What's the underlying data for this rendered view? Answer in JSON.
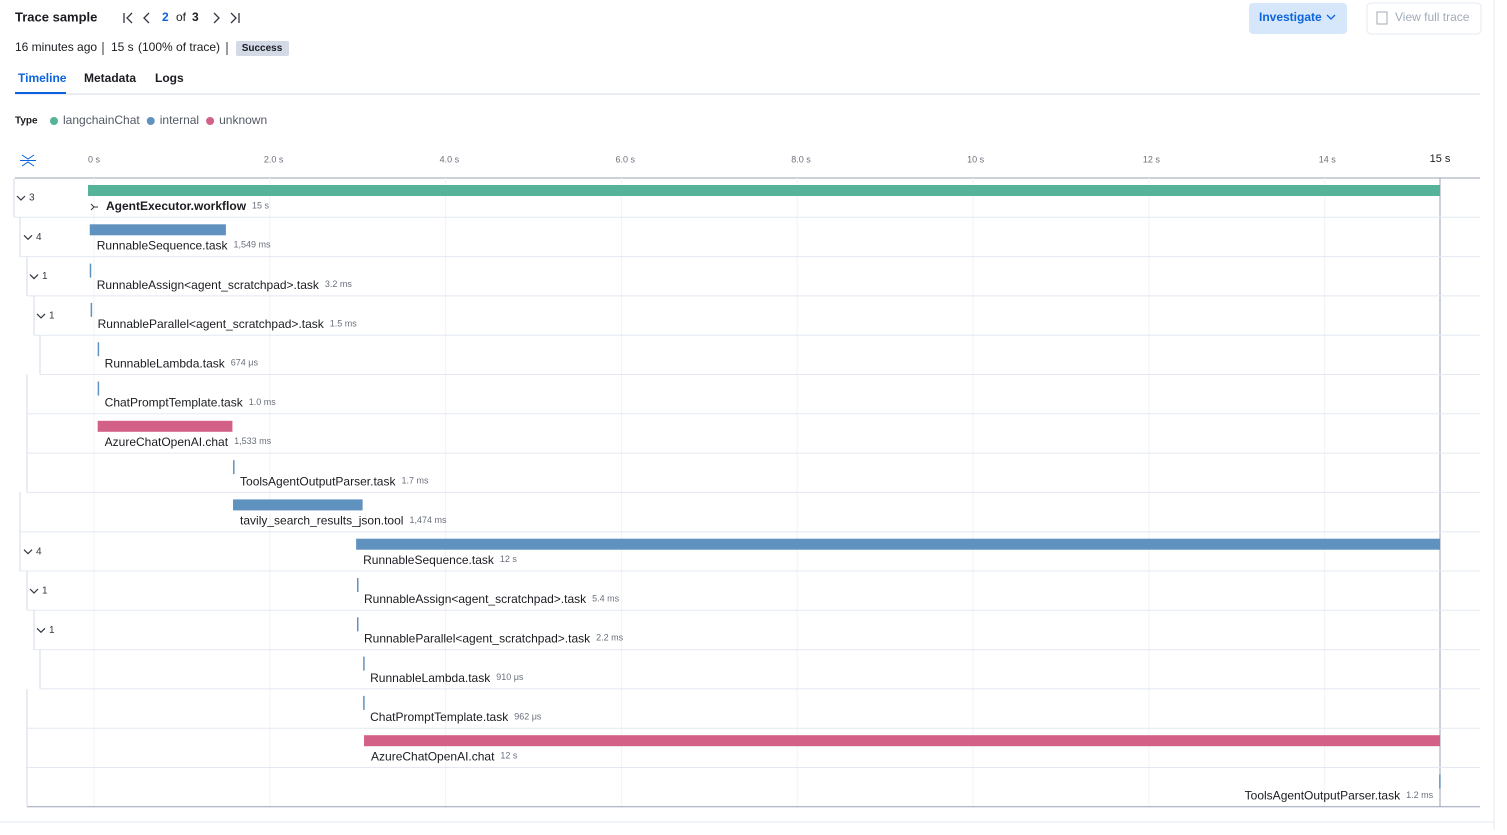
{
  "header": {
    "title": "Trace sample",
    "page": 2,
    "of": "of",
    "total": 3,
    "investigate": "Investigate",
    "view_full_trace": "View full trace"
  },
  "summary": {
    "time_ago": "16 minutes ago",
    "duration": "15 s",
    "percent": "(100% of trace)",
    "status": "Success"
  },
  "tabs": [
    "Timeline",
    "Metadata",
    "Logs"
  ],
  "legend": {
    "title": "Type",
    "items": [
      {
        "name": "langchainChat",
        "color": "#54b399"
      },
      {
        "name": "internal",
        "color": "#6092c0"
      },
      {
        "name": "unknown",
        "color": "#d36086"
      }
    ]
  },
  "timeline": {
    "xlim": [
      0,
      15.38
    ],
    "xticks": [
      {
        "value": 0,
        "label": "0 s"
      },
      {
        "value": 2,
        "label": "2.0 s"
      },
      {
        "value": 4,
        "label": "4.0 s"
      },
      {
        "value": 6,
        "label": "6.0 s"
      },
      {
        "value": 8,
        "label": "8.0 s"
      },
      {
        "value": 10,
        "label": "10 s"
      },
      {
        "value": 12,
        "label": "12 s"
      },
      {
        "value": 14,
        "label": "14 s"
      }
    ],
    "end_marker": {
      "value": 15.38,
      "label": "15 s"
    },
    "spans": [
      {
        "name": "AgentExecutor.workflow",
        "type": "langchainChat",
        "start": 0,
        "duration_ms": 15380,
        "duration_label": "15 s",
        "children": 3
      },
      {
        "name": "RunnableSequence.task",
        "type": "internal",
        "start": 0.02,
        "duration_ms": 1549,
        "duration_label": "1,549 ms",
        "children": 4
      },
      {
        "name": "RunnableAssign<agent_scratchpad>.task",
        "type": "internal",
        "start": 0.02,
        "duration_ms": 3.2,
        "duration_label": "3.2 ms",
        "children": 1
      },
      {
        "name": "RunnableParallel<agent_scratchpad>.task",
        "type": "internal",
        "start": 0.03,
        "duration_ms": 1.5,
        "duration_label": "1.5 ms",
        "children": 1
      },
      {
        "name": "RunnableLambda.task",
        "type": "internal",
        "start": 0.11,
        "duration_ms": 0.674,
        "duration_label": "674 μs"
      },
      {
        "name": "ChatPromptTemplate.task",
        "type": "internal",
        "start": 0.11,
        "duration_ms": 1.0,
        "duration_label": "1.0 ms"
      },
      {
        "name": "AzureChatOpenAI.chat",
        "type": "unknown",
        "start": 0.11,
        "duration_ms": 1533,
        "duration_label": "1,533 ms"
      },
      {
        "name": "ToolsAgentOutputParser.task",
        "type": "internal",
        "start": 1.65,
        "duration_ms": 1.7,
        "duration_label": "1.7 ms"
      },
      {
        "name": "tavily_search_results_json.tool",
        "type": "internal",
        "start": 1.65,
        "duration_ms": 1474,
        "duration_label": "1,474 ms"
      },
      {
        "name": "RunnableSequence.task",
        "type": "internal",
        "start": 3.05,
        "duration_ms": 12330,
        "duration_label": "12 s",
        "children": 4
      },
      {
        "name": "RunnableAssign<agent_scratchpad>.task",
        "type": "internal",
        "start": 3.06,
        "duration_ms": 5.4,
        "duration_label": "5.4 ms",
        "children": 1
      },
      {
        "name": "RunnableParallel<agent_scratchpad>.task",
        "type": "internal",
        "start": 3.06,
        "duration_ms": 2.2,
        "duration_label": "2.2 ms",
        "children": 1
      },
      {
        "name": "RunnableLambda.task",
        "type": "internal",
        "start": 3.13,
        "duration_ms": 0.91,
        "duration_label": "910 μs"
      },
      {
        "name": "ChatPromptTemplate.task",
        "type": "internal",
        "start": 3.13,
        "duration_ms": 0.962,
        "duration_label": "962 μs"
      },
      {
        "name": "AzureChatOpenAI.chat",
        "type": "unknown",
        "start": 3.14,
        "duration_ms": 12240,
        "duration_label": "12 s"
      },
      {
        "name": "ToolsAgentOutputParser.task",
        "type": "internal",
        "start": 15.37,
        "duration_ms": 1.2,
        "duration_label": "1.2 ms"
      }
    ]
  }
}
